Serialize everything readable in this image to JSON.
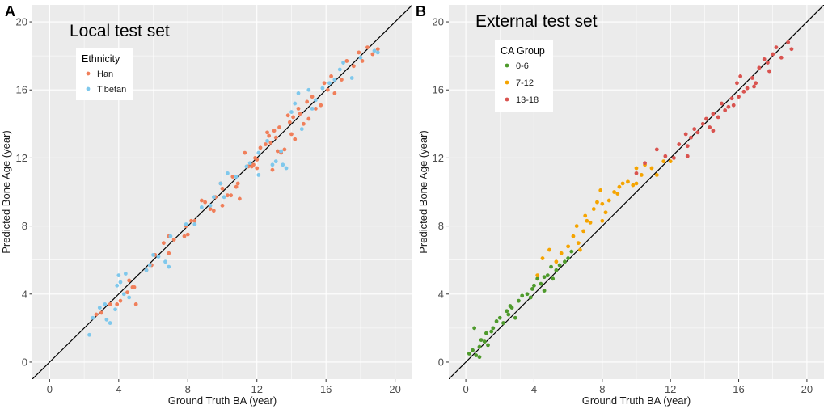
{
  "chart_data": [
    {
      "type": "scatter",
      "panel_label": "A",
      "title": "Local test set",
      "xlabel": "Ground Truth BA (year)",
      "ylabel": "Predicted Bone Age (year)",
      "xlim": [
        -1,
        21
      ],
      "ylim": [
        -1,
        21
      ],
      "xticks": [
        0,
        4,
        8,
        12,
        16,
        20
      ],
      "yticks": [
        0,
        4,
        8,
        12,
        16,
        20
      ],
      "grid": true,
      "reference_line": "y = x",
      "legend": {
        "title": "Ethnicity",
        "placement": "top-left",
        "entries": [
          {
            "label": "Han",
            "color": "#F07F5A"
          },
          {
            "label": "Tibetan",
            "color": "#7FC8EC"
          }
        ]
      },
      "series": [
        {
          "name": "Han",
          "color": "#F07F5A",
          "points": [
            [
              2.7,
              2.8
            ],
            [
              3.0,
              2.9
            ],
            [
              3.5,
              3.4
            ],
            [
              3.9,
              3.4
            ],
            [
              4.1,
              3.6
            ],
            [
              4.5,
              4.1
            ],
            [
              4.8,
              4.4
            ],
            [
              5.0,
              3.4
            ],
            [
              4.6,
              4.8
            ],
            [
              4.9,
              4.4
            ],
            [
              5.6,
              5.4
            ],
            [
              5.9,
              5.7
            ],
            [
              6.1,
              6.3
            ],
            [
              6.6,
              7.0
            ],
            [
              6.9,
              7.4
            ],
            [
              7.2,
              7.2
            ],
            [
              7.8,
              7.4
            ],
            [
              7.9,
              8.0
            ],
            [
              8.0,
              7.5
            ],
            [
              8.4,
              8.3
            ],
            [
              8.8,
              9.5
            ],
            [
              9.0,
              9.4
            ],
            [
              9.3,
              9.0
            ],
            [
              9.6,
              9.7
            ],
            [
              9.9,
              10.5
            ],
            [
              10.0,
              10.2
            ],
            [
              10.0,
              9.2
            ],
            [
              10.3,
              9.8
            ],
            [
              10.6,
              10.9
            ],
            [
              10.8,
              10.3
            ],
            [
              10.9,
              10.5
            ],
            [
              11.0,
              9.6
            ],
            [
              11.5,
              11.5
            ],
            [
              11.8,
              11.6
            ],
            [
              11.9,
              12.0
            ],
            [
              12.0,
              11.9
            ],
            [
              12.0,
              11.4
            ],
            [
              12.2,
              12.6
            ],
            [
              12.5,
              12.8
            ],
            [
              12.6,
              13.5
            ],
            [
              12.8,
              12.9
            ],
            [
              13.0,
              13.6
            ],
            [
              13.1,
              13.2
            ],
            [
              13.2,
              12.4
            ],
            [
              13.4,
              12.3
            ],
            [
              13.6,
              12.5
            ],
            [
              13.8,
              14.5
            ],
            [
              13.9,
              14.1
            ],
            [
              14.0,
              13.4
            ],
            [
              14.2,
              13.1
            ],
            [
              14.4,
              14.9
            ],
            [
              14.5,
              14.6
            ],
            [
              14.7,
              14.0
            ],
            [
              14.9,
              15.3
            ],
            [
              15.0,
              14.3
            ],
            [
              15.2,
              15.6
            ],
            [
              15.4,
              14.9
            ],
            [
              15.7,
              15.1
            ],
            [
              15.9,
              16.4
            ],
            [
              16.1,
              16.0
            ],
            [
              16.3,
              16.8
            ],
            [
              16.5,
              15.8
            ],
            [
              16.9,
              16.6
            ],
            [
              17.2,
              17.7
            ],
            [
              17.6,
              17.4
            ],
            [
              17.9,
              18.2
            ],
            [
              18.1,
              17.7
            ],
            [
              18.4,
              18.5
            ],
            [
              18.7,
              18.1
            ],
            [
              19.0,
              18.4
            ],
            [
              9.5,
              8.9
            ],
            [
              11.3,
              12.3
            ],
            [
              12.7,
              13.3
            ],
            [
              13.3,
              13.8
            ],
            [
              14.1,
              14.4
            ],
            [
              10.5,
              9.8
            ],
            [
              8.2,
              8.3
            ],
            [
              6.9,
              6.4
            ],
            [
              12.9,
              11.3
            ],
            [
              11.7,
              11.5
            ]
          ]
        },
        {
          "name": "Tibetan",
          "color": "#7FC8EC",
          "points": [
            [
              2.3,
              1.6
            ],
            [
              2.5,
              2.6
            ],
            [
              2.9,
              3.2
            ],
            [
              3.2,
              3.4
            ],
            [
              3.3,
              2.5
            ],
            [
              3.5,
              2.3
            ],
            [
              3.8,
              3.1
            ],
            [
              3.9,
              4.5
            ],
            [
              4.0,
              5.1
            ],
            [
              4.1,
              4.7
            ],
            [
              4.3,
              4.0
            ],
            [
              4.4,
              5.2
            ],
            [
              4.6,
              3.8
            ],
            [
              5.6,
              5.4
            ],
            [
              5.8,
              5.7
            ],
            [
              6.0,
              6.3
            ],
            [
              6.3,
              6.2
            ],
            [
              6.7,
              5.9
            ],
            [
              6.9,
              5.6
            ],
            [
              7.0,
              7.4
            ],
            [
              7.9,
              8.1
            ],
            [
              8.4,
              8.1
            ],
            [
              8.8,
              9.1
            ],
            [
              9.3,
              9.2
            ],
            [
              9.9,
              10.5
            ],
            [
              10.1,
              9.7
            ],
            [
              10.3,
              11.1
            ],
            [
              10.8,
              10.9
            ],
            [
              11.4,
              11.5
            ],
            [
              11.6,
              11.7
            ],
            [
              12.1,
              12.3
            ],
            [
              12.6,
              13.0
            ],
            [
              12.9,
              11.6
            ],
            [
              13.1,
              11.8
            ],
            [
              13.5,
              11.6
            ],
            [
              13.7,
              11.4
            ],
            [
              14.0,
              14.7
            ],
            [
              14.2,
              15.2
            ],
            [
              14.4,
              15.8
            ],
            [
              14.6,
              13.7
            ],
            [
              15.0,
              16.0
            ],
            [
              15.2,
              14.9
            ],
            [
              15.8,
              16.1
            ],
            [
              16.2,
              16.4
            ],
            [
              16.5,
              16.6
            ],
            [
              16.8,
              17.2
            ],
            [
              17.0,
              17.6
            ],
            [
              17.5,
              16.7
            ],
            [
              18.0,
              17.9
            ],
            [
              18.8,
              18.3
            ],
            [
              19.0,
              18.2
            ],
            [
              13.4,
              12.4
            ],
            [
              12.1,
              11.0
            ],
            [
              9.5,
              9.7
            ],
            [
              15.4,
              15.4
            ]
          ]
        }
      ]
    },
    {
      "type": "scatter",
      "panel_label": "B",
      "title": "External test set",
      "xlabel": "Ground Truth BA (year)",
      "ylabel": "Predicted Bone Age (year)",
      "xlim": [
        -1,
        21
      ],
      "ylim": [
        -1,
        21
      ],
      "xticks": [
        0,
        4,
        8,
        12,
        16,
        20
      ],
      "yticks": [
        0,
        4,
        8,
        12,
        16,
        20
      ],
      "grid": true,
      "reference_line": "y = x",
      "legend": {
        "title": "CA Group",
        "placement": "top-left",
        "entries": [
          {
            "label": "0-6",
            "color": "#4E9A2C"
          },
          {
            "label": "7-12",
            "color": "#F5A400"
          },
          {
            "label": "13-18",
            "color": "#D9534F"
          }
        ]
      },
      "series": [
        {
          "name": "0-6",
          "color": "#4E9A2C",
          "points": [
            [
              0.2,
              0.5
            ],
            [
              0.4,
              0.7
            ],
            [
              0.5,
              2.0
            ],
            [
              0.6,
              0.4
            ],
            [
              0.8,
              0.9
            ],
            [
              0.9,
              1.3
            ],
            [
              1.1,
              1.2
            ],
            [
              1.2,
              1.7
            ],
            [
              1.5,
              1.8
            ],
            [
              1.6,
              2.0
            ],
            [
              1.8,
              2.4
            ],
            [
              2.0,
              2.6
            ],
            [
              2.2,
              2.3
            ],
            [
              2.4,
              3.0
            ],
            [
              2.5,
              2.8
            ],
            [
              2.7,
              3.2
            ],
            [
              2.9,
              2.6
            ],
            [
              3.1,
              3.6
            ],
            [
              3.3,
              3.9
            ],
            [
              3.6,
              4.0
            ],
            [
              3.8,
              3.8
            ],
            [
              4.0,
              4.5
            ],
            [
              4.2,
              4.9
            ],
            [
              4.4,
              4.6
            ],
            [
              4.6,
              5.0
            ],
            [
              4.8,
              5.1
            ],
            [
              5.0,
              5.6
            ],
            [
              5.1,
              4.9
            ],
            [
              5.3,
              5.4
            ],
            [
              5.5,
              5.7
            ],
            [
              5.8,
              5.9
            ],
            [
              6.0,
              6.1
            ],
            [
              6.2,
              6.5
            ],
            [
              3.9,
              4.3
            ],
            [
              4.6,
              4.2
            ],
            [
              2.6,
              3.3
            ],
            [
              1.3,
              1.0
            ],
            [
              0.8,
              0.3
            ]
          ]
        },
        {
          "name": "7-12",
          "color": "#F5A400",
          "points": [
            [
              4.2,
              5.1
            ],
            [
              4.5,
              6.1
            ],
            [
              4.9,
              6.6
            ],
            [
              5.3,
              5.9
            ],
            [
              5.6,
              6.4
            ],
            [
              6.0,
              6.8
            ],
            [
              6.3,
              7.4
            ],
            [
              6.5,
              8.0
            ],
            [
              6.7,
              6.6
            ],
            [
              6.9,
              7.7
            ],
            [
              7.1,
              8.3
            ],
            [
              7.3,
              8.2
            ],
            [
              7.5,
              9.0
            ],
            [
              7.7,
              9.4
            ],
            [
              7.9,
              10.1
            ],
            [
              8.0,
              9.3
            ],
            [
              8.2,
              8.8
            ],
            [
              8.4,
              9.5
            ],
            [
              8.7,
              10.0
            ],
            [
              8.9,
              9.9
            ],
            [
              9.2,
              10.5
            ],
            [
              9.5,
              10.6
            ],
            [
              9.8,
              10.4
            ],
            [
              10.0,
              11.4
            ],
            [
              10.3,
              11.0
            ],
            [
              10.5,
              11.6
            ],
            [
              10.9,
              11.4
            ],
            [
              11.2,
              11.0
            ],
            [
              11.6,
              11.8
            ],
            [
              12.0,
              11.8
            ],
            [
              6.6,
              7.0
            ],
            [
              7.0,
              8.6
            ],
            [
              8.0,
              8.3
            ],
            [
              9.0,
              10.3
            ],
            [
              10.0,
              10.5
            ]
          ]
        },
        {
          "name": "13-18",
          "color": "#D9534F",
          "points": [
            [
              10.0,
              11.1
            ],
            [
              10.5,
              11.7
            ],
            [
              11.2,
              12.5
            ],
            [
              11.7,
              12.1
            ],
            [
              12.2,
              12.0
            ],
            [
              12.5,
              12.8
            ],
            [
              12.9,
              13.4
            ],
            [
              13.0,
              12.7
            ],
            [
              13.2,
              13.2
            ],
            [
              13.4,
              13.7
            ],
            [
              13.6,
              13.5
            ],
            [
              13.9,
              14.0
            ],
            [
              14.1,
              14.3
            ],
            [
              14.3,
              13.8
            ],
            [
              14.5,
              14.6
            ],
            [
              14.8,
              14.4
            ],
            [
              15.0,
              15.2
            ],
            [
              15.2,
              14.8
            ],
            [
              15.4,
              15.0
            ],
            [
              15.6,
              15.5
            ],
            [
              15.9,
              16.4
            ],
            [
              16.0,
              15.6
            ],
            [
              16.1,
              16.8
            ],
            [
              16.3,
              15.9
            ],
            [
              16.5,
              16.1
            ],
            [
              16.8,
              16.7
            ],
            [
              17.0,
              16.4
            ],
            [
              17.2,
              17.3
            ],
            [
              17.5,
              17.8
            ],
            [
              17.8,
              17.1
            ],
            [
              18.0,
              18.1
            ],
            [
              18.2,
              18.5
            ],
            [
              18.5,
              17.9
            ],
            [
              18.9,
              18.8
            ],
            [
              19.1,
              18.4
            ],
            [
              13.0,
              12.1
            ],
            [
              14.5,
              13.6
            ],
            [
              15.7,
              15.1
            ],
            [
              16.9,
              16.2
            ],
            [
              17.7,
              17.6
            ]
          ]
        }
      ]
    }
  ]
}
